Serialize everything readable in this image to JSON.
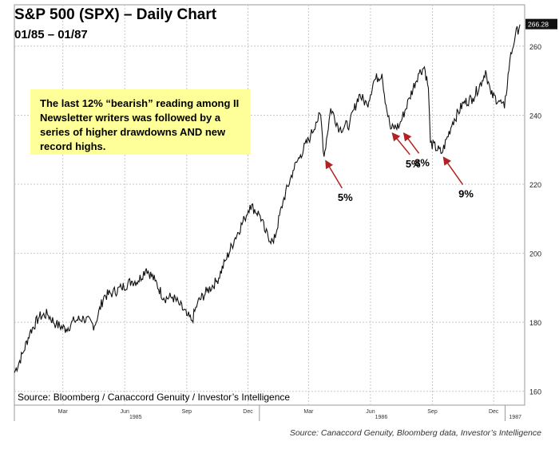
{
  "header": {
    "title": "S&P 500 (SPX) – Daily Chart",
    "subtitle": "01/85 – 01/87"
  },
  "callout": {
    "text": "The last 12% “bearish” reading among II Newsletter writers was followed by a series of higher drawdowns AND new record highs."
  },
  "footer": {
    "inline_source": "Source: Bloomberg / Canaccord Genuity / Investor’s Intelligence",
    "credit": "Source: Canaccord Genuity, Bloomberg data, Investor’s Intelligence"
  },
  "colors": {
    "price_line": "#111111",
    "grid": "#c8c8c8",
    "arrow": "#b22222",
    "callout_bg": "#ffff99"
  },
  "chart_data": {
    "type": "line",
    "series": [
      {
        "x": [
          "1985-01-02",
          "1985-01-15",
          "1985-01-25",
          "1985-02-08",
          "1985-02-20",
          "1985-03-05",
          "1985-03-20",
          "1985-04-01",
          "1985-04-15",
          "1985-05-01",
          "1985-05-15",
          "1985-05-28",
          "1985-06-10",
          "1985-06-25",
          "1985-07-05",
          "1985-07-17",
          "1985-07-30",
          "1985-08-12",
          "1985-08-25",
          "1985-09-05",
          "1985-09-15",
          "1985-09-23",
          "1985-10-01",
          "1985-10-15",
          "1985-10-30",
          "1985-11-12",
          "1985-11-26",
          "1985-12-10",
          "1985-12-18",
          "1986-01-02",
          "1986-01-10",
          "1986-01-22",
          "1986-02-05",
          "1986-02-20",
          "1986-03-03",
          "1986-03-18",
          "1986-03-26",
          "1986-04-02",
          "1986-04-07",
          "1986-04-17",
          "1986-04-30",
          "1986-05-15",
          "1986-05-29",
          "1986-06-10",
          "1986-06-20",
          "1986-07-02",
          "1986-07-08",
          "1986-07-15",
          "1986-07-28",
          "1986-08-12",
          "1986-08-25",
          "1986-09-03",
          "1986-09-09",
          "1986-09-12",
          "1986-09-29",
          "1986-10-15",
          "1986-10-31",
          "1986-11-14",
          "1986-11-28",
          "1986-12-03",
          "1986-12-11",
          "1986-12-24",
          "1986-12-31",
          "1987-01-08",
          "1987-01-16",
          "1987-01-23"
        ],
        "y": [
          165.4,
          171.2,
          177.0,
          181.6,
          182.4,
          179.4,
          178.0,
          180.5,
          181.2,
          179.0,
          187.5,
          188.6,
          190.0,
          191.9,
          192.0,
          195.6,
          192.0,
          187.0,
          187.3,
          185.0,
          182.0,
          180.5,
          185.6,
          189.0,
          192.0,
          198.0,
          204.5,
          210.0,
          214.0,
          211.0,
          206.0,
          203.0,
          215.0,
          224.0,
          228.5,
          234.0,
          238.0,
          240.0,
          228.0,
          242.0,
          236.0,
          237.5,
          246.0,
          243.0,
          250.0,
          252.0,
          243.0,
          236.0,
          237.0,
          245.0,
          252.0,
          254.0,
          248.0,
          232.0,
          229.0,
          238.0,
          243.5,
          245.0,
          250.0,
          253.0,
          246.0,
          244.0,
          242.0,
          256.0,
          263.0,
          266.3
        ]
      }
    ],
    "x_tick_labels_minor": [
      "Mar",
      "Jun",
      "Sep",
      "Dec",
      "Mar",
      "Jun",
      "Sep",
      "Dec"
    ],
    "x_tick_labels_major": [
      "1985",
      "1986",
      "1987"
    ],
    "y_ticks": [
      160,
      180,
      200,
      220,
      240,
      260
    ],
    "last_value_label": "266.28",
    "ylim": [
      156,
      272
    ],
    "xlim": [
      "1985-01-02",
      "1987-01-30"
    ],
    "grid": true,
    "y_axis_side": "right",
    "annotations": [
      {
        "label": "5%",
        "date": "1986-04-07",
        "value": 228
      },
      {
        "label": "5%",
        "date": "1986-07-15",
        "value": 236
      },
      {
        "label": "8%",
        "date": "1986-08-01",
        "value": 236
      },
      {
        "label": "9%",
        "date": "1986-09-29",
        "value": 229
      }
    ]
  }
}
